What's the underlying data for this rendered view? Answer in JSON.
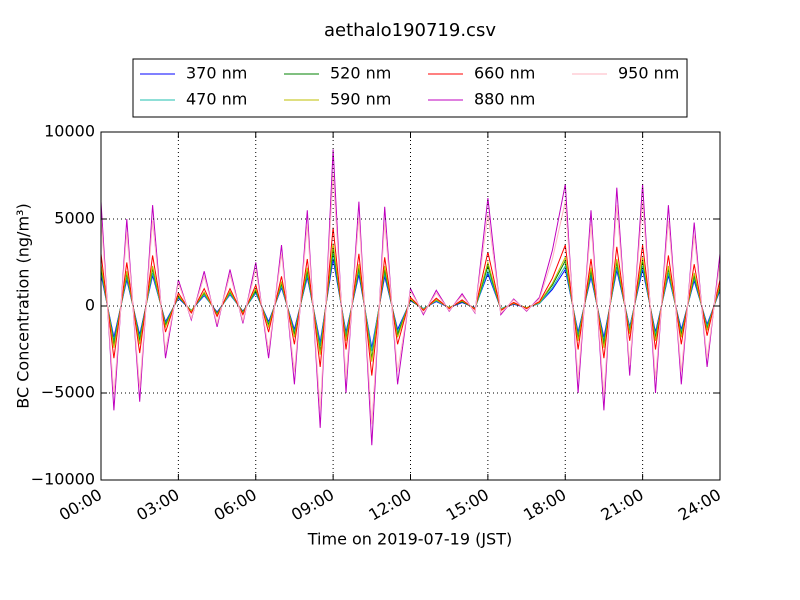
{
  "chart_data": {
    "type": "line",
    "title": "aethalo190719.csv",
    "xlabel": "Time on 2019-07-19 (JST)",
    "ylabel": "BC Concentration (ng/m³)",
    "x": [
      "00:00",
      "00:30",
      "01:00",
      "01:30",
      "02:00",
      "02:30",
      "03:00",
      "03:30",
      "04:00",
      "04:30",
      "05:00",
      "05:30",
      "06:00",
      "06:30",
      "07:00",
      "07:30",
      "08:00",
      "08:30",
      "09:00",
      "09:30",
      "10:00",
      "10:30",
      "11:00",
      "11:30",
      "12:00",
      "12:30",
      "13:00",
      "13:30",
      "14:00",
      "14:30",
      "15:00",
      "15:30",
      "16:00",
      "16:30",
      "17:00",
      "17:30",
      "18:00",
      "18:30",
      "19:00",
      "19:30",
      "20:00",
      "20:30",
      "21:00",
      "21:30",
      "22:00",
      "22:30",
      "23:00",
      "23:30",
      "24:00"
    ],
    "xlim": [
      "00:00",
      "24:00"
    ],
    "xticks": [
      "00:00",
      "03:00",
      "06:00",
      "09:00",
      "12:00",
      "15:00",
      "18:00",
      "21:00",
      "24:00"
    ],
    "ylim": [
      -10000,
      10000
    ],
    "yticks": [
      {
        "value": -10000,
        "label": "−10000"
      },
      {
        "value": -5000,
        "label": "−5000"
      },
      0,
      5000,
      10000
    ],
    "grid": true,
    "series": [
      {
        "name": "370 nm",
        "color": "#0000ff",
        "values": [
          1800,
          -1800,
          1500,
          -1650,
          1750,
          -900,
          450,
          -250,
          600,
          -350,
          650,
          -300,
          750,
          -900,
          1050,
          -1350,
          1650,
          -2100,
          2700,
          -1500,
          1800,
          -2400,
          1700,
          -1350,
          300,
          -150,
          250,
          -100,
          200,
          -100,
          1850,
          -150,
          100,
          -100,
          150,
          950,
          2100,
          -1500,
          1650,
          -1800,
          2050,
          -1200,
          2100,
          -1500,
          1750,
          -1350,
          1450,
          -1050,
          900
        ]
      },
      {
        "name": "470 nm",
        "color": "#1fbfaf",
        "values": [
          2000,
          -2000,
          1650,
          -1800,
          1900,
          -1000,
          500,
          -250,
          650,
          -400,
          700,
          -350,
          800,
          -1000,
          1150,
          -1500,
          1800,
          -2300,
          3000,
          -1650,
          2000,
          -2600,
          1900,
          -1500,
          350,
          -150,
          300,
          -100,
          250,
          -150,
          2000,
          -150,
          150,
          -100,
          150,
          1050,
          2300,
          -1650,
          1800,
          -2000,
          2250,
          -1300,
          2300,
          -1650,
          1900,
          -1500,
          1600,
          -1150,
          1000
        ]
      },
      {
        "name": "520 nm",
        "color": "#008000",
        "values": [
          2200,
          -2200,
          1850,
          -2000,
          2150,
          -1100,
          550,
          -300,
          750,
          -450,
          800,
          -350,
          900,
          -1100,
          1300,
          -1650,
          2000,
          -2600,
          3300,
          -1850,
          2200,
          -3000,
          2100,
          -1650,
          350,
          -200,
          350,
          -100,
          250,
          -150,
          2300,
          -200,
          150,
          -100,
          200,
          1200,
          2600,
          -1850,
          2000,
          -2200,
          2500,
          -1500,
          2600,
          -1850,
          2150,
          -1650,
          1750,
          -1300,
          1100
        ]
      },
      {
        "name": "590 nm",
        "color": "#bfbf00",
        "values": [
          2400,
          -2400,
          2000,
          -2200,
          2300,
          -1200,
          600,
          -300,
          800,
          -500,
          850,
          -400,
          1000,
          -1200,
          1400,
          -1800,
          2200,
          -2800,
          3600,
          -2000,
          2400,
          -3200,
          2300,
          -1800,
          400,
          -200,
          350,
          -100,
          300,
          -150,
          2500,
          -200,
          150,
          -100,
          200,
          1300,
          2800,
          -2000,
          2200,
          -2400,
          2700,
          -1600,
          2800,
          -2000,
          2300,
          -1800,
          1900,
          -1400,
          1200
        ]
      },
      {
        "name": "660 nm",
        "color": "#ff0000",
        "values": [
          3000,
          -3000,
          2500,
          -2700,
          2900,
          -1500,
          750,
          -400,
          1000,
          -600,
          1000,
          -500,
          1200,
          -1500,
          1700,
          -2200,
          2700,
          -3500,
          4500,
          -2500,
          3000,
          -4000,
          2800,
          -2200,
          500,
          -250,
          450,
          -150,
          350,
          -200,
          3100,
          -250,
          200,
          -150,
          250,
          1600,
          3500,
          -2500,
          2700,
          -3000,
          3400,
          -2000,
          3500,
          -2500,
          2900,
          -2200,
          2400,
          -1700,
          1500
        ]
      },
      {
        "name": "880 nm",
        "color": "#bf00bf",
        "values": [
          6000,
          -6000,
          5000,
          -5500,
          5800,
          -3000,
          1500,
          -800,
          2000,
          -1200,
          2100,
          -1000,
          2500,
          -3000,
          3500,
          -4500,
          5500,
          -7000,
          9000,
          -5000,
          6000,
          -8000,
          5700,
          -4500,
          1000,
          -500,
          900,
          -300,
          700,
          -400,
          6200,
          -500,
          400,
          -300,
          500,
          3200,
          7000,
          -5000,
          5500,
          -6000,
          6800,
          -4000,
          7000,
          -5000,
          5800,
          -4500,
          4800,
          -3500,
          3000
        ]
      },
      {
        "name": "950 nm",
        "color": "#ffb6c1",
        "values": [
          5100,
          -5100,
          4250,
          -4700,
          4900,
          -2550,
          1300,
          -700,
          1700,
          -1000,
          1800,
          -850,
          2100,
          -2550,
          3000,
          -3800,
          4700,
          -6000,
          7600,
          -4200,
          5100,
          -6800,
          4800,
          -3800,
          850,
          -400,
          750,
          -250,
          600,
          -350,
          5300,
          -400,
          350,
          -250,
          400,
          2700,
          6000,
          -4200,
          4700,
          -5100,
          5800,
          -3400,
          6000,
          -4200,
          4900,
          -3800,
          4100,
          -3000,
          2500
        ]
      }
    ]
  }
}
